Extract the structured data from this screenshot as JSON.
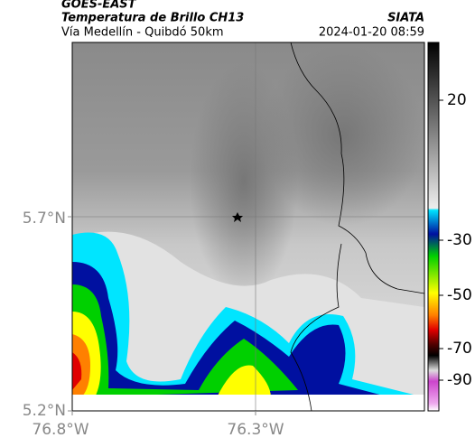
{
  "header": {
    "source": "GOES-EAST",
    "title": "Temperatura de Brillo CH13",
    "subtitle": "Vía Medellín - Quibdó 50km",
    "org": "SIATA",
    "datetime": "2024-01-20 08:59"
  },
  "map": {
    "x_labels": [
      "76.8°W",
      "76.3°W"
    ],
    "y_labels": [
      "5.7°N",
      "5.2°N"
    ]
  },
  "colorbar": {
    "ticks": [
      20,
      -30,
      -50,
      -70,
      -90
    ]
  }
}
